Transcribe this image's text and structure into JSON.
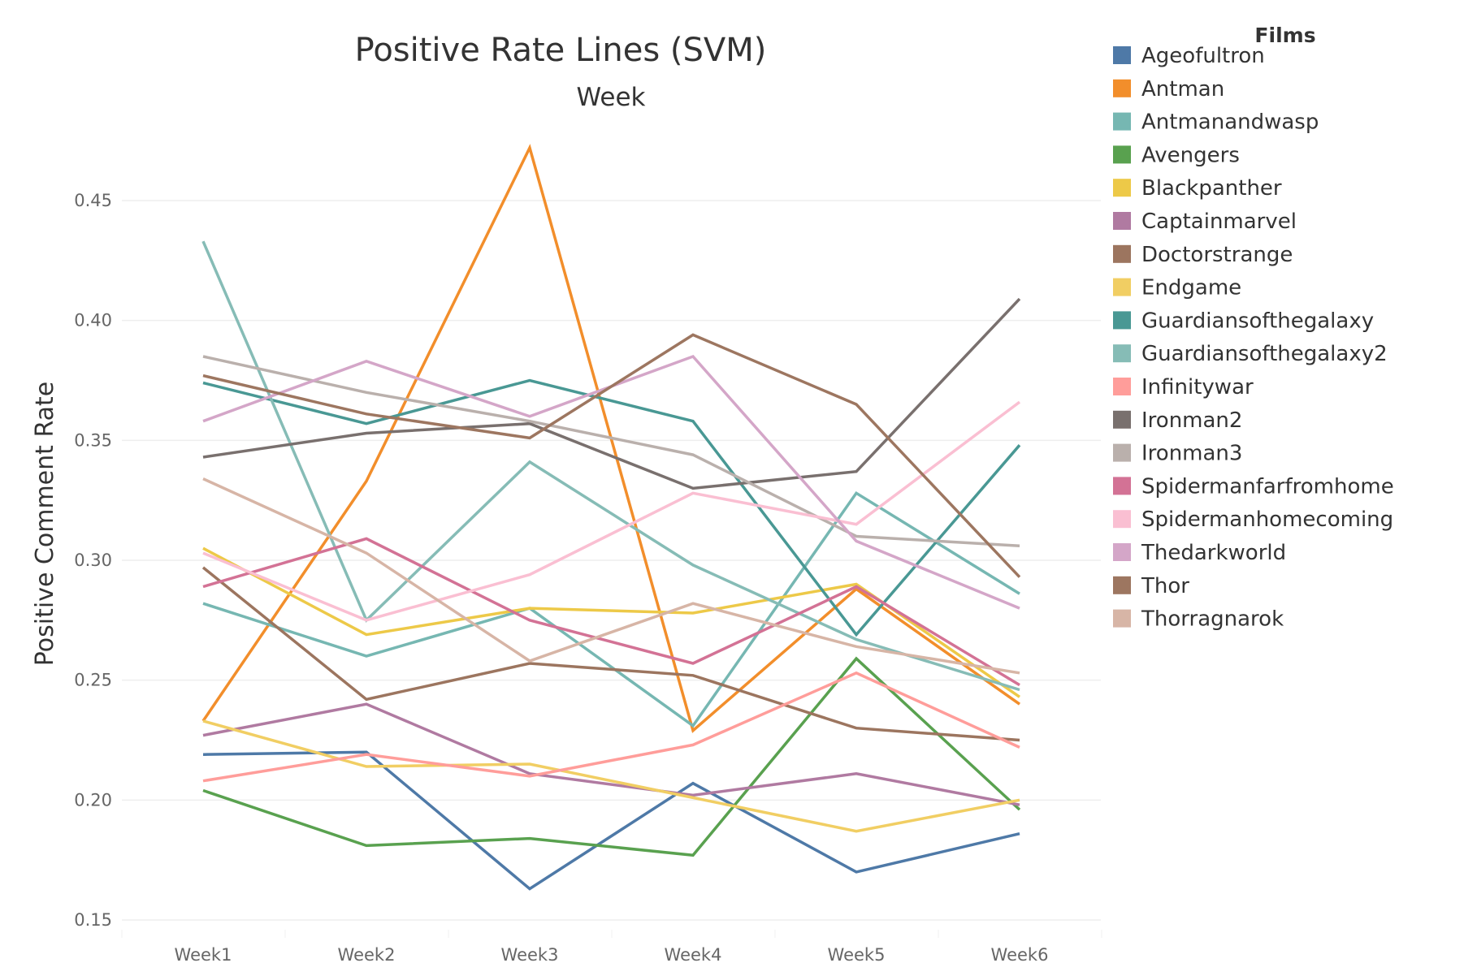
{
  "chart_data": {
    "type": "line",
    "title": "Positive Rate Lines (SVM)",
    "subtitle": "Week",
    "xlabel": "",
    "ylabel": "Positive Comment Rate",
    "categories": [
      "Week1",
      "Week2",
      "Week3",
      "Week4",
      "Week5",
      "Week6"
    ],
    "ylim": [
      0.145,
      0.485
    ],
    "yticks": [
      0.15,
      0.2,
      0.25,
      0.3,
      0.35,
      0.4,
      0.45
    ],
    "yticklabels": [
      "0.15",
      "0.20",
      "0.25",
      "0.30",
      "0.35",
      "0.40",
      "0.45"
    ],
    "grid": true,
    "legend": {
      "title": "Films",
      "placement": "right"
    },
    "series": [
      {
        "name": "Ageofultron",
        "color": "#4e79a7",
        "values": [
          0.219,
          0.22,
          0.163,
          0.207,
          0.17,
          0.186
        ]
      },
      {
        "name": "Antman",
        "color": "#f28e2b",
        "values": [
          0.233,
          0.333,
          0.472,
          0.229,
          0.288,
          0.24
        ]
      },
      {
        "name": "Antmanandwasp",
        "color": "#76b7b2",
        "values": [
          0.282,
          0.26,
          0.28,
          0.231,
          0.328,
          0.286
        ]
      },
      {
        "name": "Avengers",
        "color": "#59a14f",
        "values": [
          0.204,
          0.181,
          0.184,
          0.177,
          0.259,
          0.196
        ]
      },
      {
        "name": "Blackpanther",
        "color": "#edc948",
        "values": [
          0.305,
          0.269,
          0.28,
          0.278,
          0.29,
          0.243
        ]
      },
      {
        "name": "Captainmarvel",
        "color": "#b07aa1",
        "values": [
          0.227,
          0.24,
          0.211,
          0.202,
          0.211,
          0.198
        ]
      },
      {
        "name": "Doctorstrange",
        "color": "#9c755f",
        "values": [
          0.297,
          0.242,
          0.257,
          0.252,
          0.23,
          0.225
        ]
      },
      {
        "name": "Endgame",
        "color": "#f1ce63",
        "values": [
          0.233,
          0.214,
          0.215,
          0.201,
          0.187,
          0.2
        ]
      },
      {
        "name": "Guardiansofthegalaxy",
        "color": "#499894",
        "values": [
          0.374,
          0.357,
          0.375,
          0.358,
          0.269,
          0.348
        ]
      },
      {
        "name": "Guardiansofthegalaxy2",
        "color": "#86bcb6",
        "values": [
          0.433,
          0.275,
          0.341,
          0.298,
          0.267,
          0.246
        ]
      },
      {
        "name": "Infinitywar",
        "color": "#ff9d9a",
        "values": [
          0.208,
          0.219,
          0.21,
          0.223,
          0.253,
          0.222
        ]
      },
      {
        "name": "Ironman2",
        "color": "#79706e",
        "values": [
          0.343,
          0.353,
          0.357,
          0.33,
          0.337,
          0.409
        ]
      },
      {
        "name": "Ironman3",
        "color": "#bab0ac",
        "values": [
          0.385,
          0.37,
          0.358,
          0.344,
          0.31,
          0.306
        ]
      },
      {
        "name": "Spidermanfarfromhome",
        "color": "#d37295",
        "values": [
          0.289,
          0.309,
          0.275,
          0.257,
          0.289,
          0.248
        ]
      },
      {
        "name": "Spidermanhomecoming",
        "color": "#fabfd2",
        "values": [
          0.303,
          0.275,
          0.294,
          0.328,
          0.315,
          0.366
        ]
      },
      {
        "name": "Thedarkworld",
        "color": "#d4a6c8",
        "values": [
          0.358,
          0.383,
          0.36,
          0.385,
          0.308,
          0.28
        ]
      },
      {
        "name": "Thor",
        "color": "#9d7660",
        "values": [
          0.377,
          0.361,
          0.351,
          0.394,
          0.365,
          0.293
        ]
      },
      {
        "name": "Thorragnarok",
        "color": "#d7b5a6",
        "values": [
          0.334,
          0.303,
          0.258,
          0.282,
          0.264,
          0.253
        ]
      }
    ]
  }
}
